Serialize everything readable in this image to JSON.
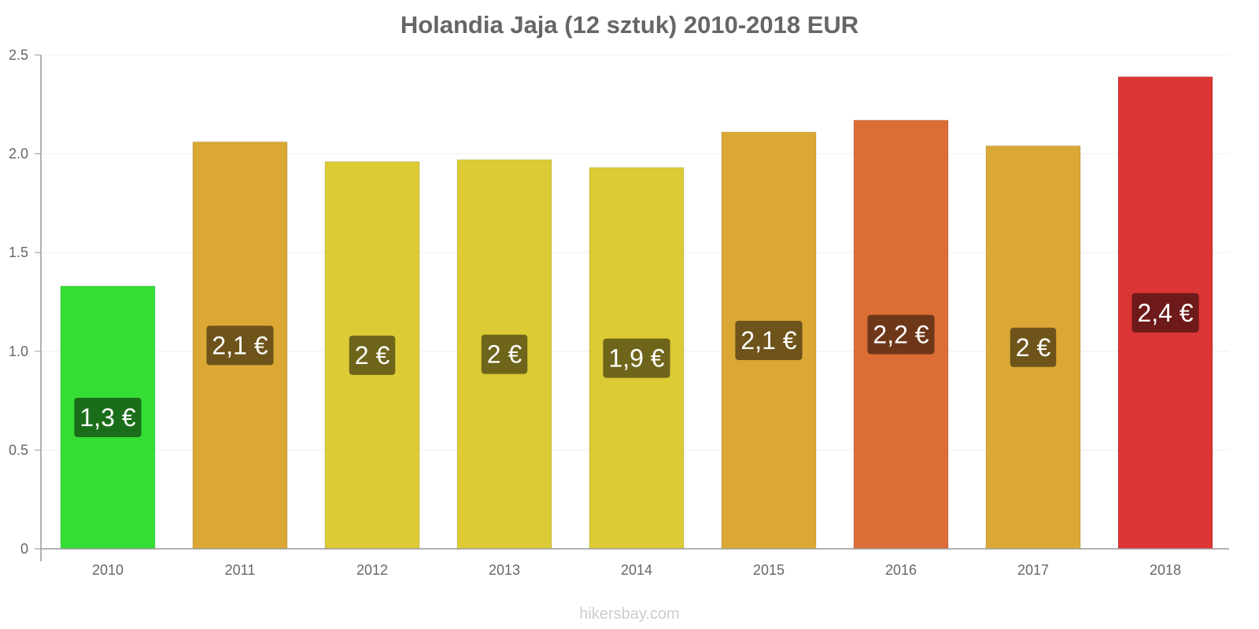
{
  "chart_data": {
    "type": "bar",
    "title": "Holandia Jaja (12 sztuk) 2010-2018 EUR",
    "xlabel": "",
    "ylabel": "",
    "categories": [
      "2010",
      "2011",
      "2012",
      "2013",
      "2014",
      "2015",
      "2016",
      "2017",
      "2018"
    ],
    "values": [
      1.33,
      2.06,
      1.96,
      1.97,
      1.93,
      2.11,
      2.17,
      2.04,
      2.39
    ],
    "data_labels": [
      "1,3 €",
      "2,1 €",
      "2 €",
      "2 €",
      "1,9 €",
      "2,1 €",
      "2,2 €",
      "2 €",
      "2,4 €"
    ],
    "bar_colors": [
      "#35dd35",
      "#dca835",
      "#dccb35",
      "#dccb35",
      "#dccb35",
      "#dca835",
      "#dc6e35",
      "#dca835",
      "#dc3535"
    ],
    "label_bg_colors": [
      "#1a6e1a",
      "#6e541a",
      "#6e651a",
      "#6e651a",
      "#6e651a",
      "#6e541a",
      "#6e371a",
      "#6e541a",
      "#6e1a1a"
    ],
    "ylim": [
      0,
      2.5
    ],
    "yticks": [
      0,
      0.5,
      1.0,
      1.5,
      2.0,
      2.5
    ],
    "ytick_labels": [
      "0",
      "0.5",
      "1.0",
      "1.5",
      "2.0",
      "2.5"
    ],
    "grid": true,
    "legend": "none"
  },
  "footer": {
    "watermark": "hikersbay.com"
  }
}
